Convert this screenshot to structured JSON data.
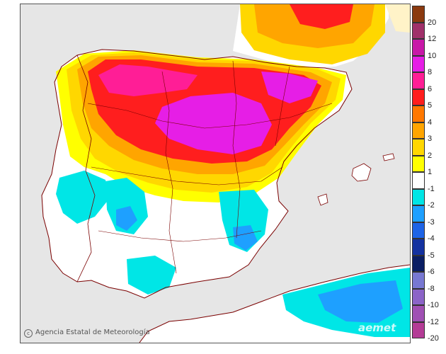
{
  "credit": "Agencia Estatal de Meteorología",
  "brand": "aemet",
  "legend": {
    "items": [
      {
        "label": "20",
        "color": "#8b3a0f"
      },
      {
        "label": "12",
        "color": "#a0306a"
      },
      {
        "label": "10",
        "color": "#c818a8"
      },
      {
        "label": "8",
        "color": "#e61ee6"
      },
      {
        "label": "6",
        "color": "#ff1e96"
      },
      {
        "label": "5",
        "color": "#ff1e1e"
      },
      {
        "label": "4",
        "color": "#ff7800"
      },
      {
        "label": "3",
        "color": "#ffa500"
      },
      {
        "label": "2",
        "color": "#ffd700"
      },
      {
        "label": "1",
        "color": "#ffff00"
      },
      {
        "label": "-1",
        "color": "#ffffff"
      },
      {
        "label": "-2",
        "color": "#00e6e6"
      },
      {
        "label": "-3",
        "color": "#1ea0ff"
      },
      {
        "label": "-4",
        "color": "#1e64e6"
      },
      {
        "label": "-5",
        "color": "#1432a0"
      },
      {
        "label": "-6",
        "color": "#0a1e64"
      },
      {
        "label": "-8",
        "color": "#7878d2"
      },
      {
        "label": "-10",
        "color": "#8c64c8"
      },
      {
        "label": "-12",
        "color": "#a050b4"
      },
      {
        "label": "-20",
        "color": "#b43c96"
      }
    ]
  },
  "map": {
    "background_color": "#e6e6e6",
    "land_color": "#ffffff",
    "border_color": "#7a0000"
  }
}
